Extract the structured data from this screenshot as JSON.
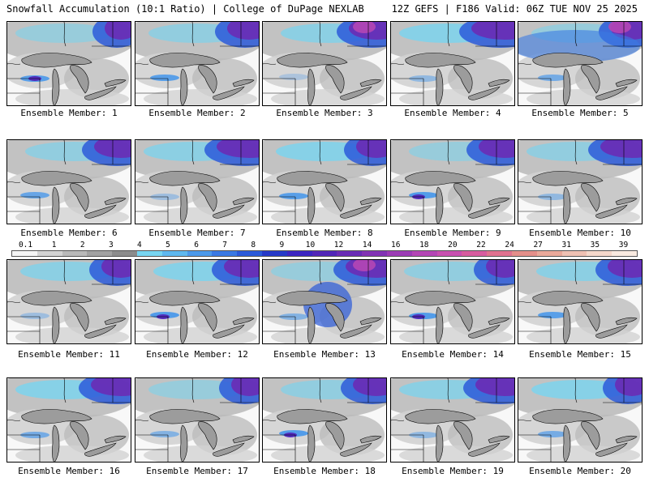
{
  "header": {
    "title": "Snowfall Accumulation (10:1 Ratio) | College of DuPage NEXLAB",
    "run_info": "12Z GEFS | F186 Valid: 06Z TUE NOV 25 2025"
  },
  "legend": {
    "ticks": [
      "0.1",
      "1",
      "2",
      "3",
      "4",
      "5",
      "6",
      "7",
      "8",
      "9",
      "10",
      "12",
      "14",
      "16",
      "18",
      "20",
      "22",
      "24",
      "27",
      "31",
      "35",
      "39"
    ],
    "colors": [
      "#f4f4f4",
      "#d2d2d2",
      "#b9b9b9",
      "#a2a2a2",
      "#8c8c8c",
      "#77d5f1",
      "#5eb8ef",
      "#4b99ea",
      "#3a79e3",
      "#2b5ad9",
      "#2639c8",
      "#3c25c2",
      "#5126b8",
      "#6a2cb5",
      "#8233b4",
      "#9c3cb5",
      "#b446b5",
      "#c850b0",
      "#d75c9f",
      "#e0728f",
      "#e48f8a",
      "#e9a89a",
      "#efc1b3",
      "#f5d8cb",
      "#f9eae0"
    ]
  },
  "members": [
    {
      "label": "Ensemble Member: 1"
    },
    {
      "label": "Ensemble Member: 2"
    },
    {
      "label": "Ensemble Member: 3"
    },
    {
      "label": "Ensemble Member: 4"
    },
    {
      "label": "Ensemble Member: 5"
    },
    {
      "label": "Ensemble Member: 6"
    },
    {
      "label": "Ensemble Member: 7"
    },
    {
      "label": "Ensemble Member: 8"
    },
    {
      "label": "Ensemble Member: 9"
    },
    {
      "label": "Ensemble Member: 10"
    },
    {
      "label": "Ensemble Member: 11"
    },
    {
      "label": "Ensemble Member: 12"
    },
    {
      "label": "Ensemble Member: 13"
    },
    {
      "label": "Ensemble Member: 14"
    },
    {
      "label": "Ensemble Member: 15"
    },
    {
      "label": "Ensemble Member: 16"
    },
    {
      "label": "Ensemble Member: 17"
    },
    {
      "label": "Ensemble Member: 18"
    },
    {
      "label": "Ensemble Member: 19"
    },
    {
      "label": "Ensemble Member: 20"
    }
  ]
}
